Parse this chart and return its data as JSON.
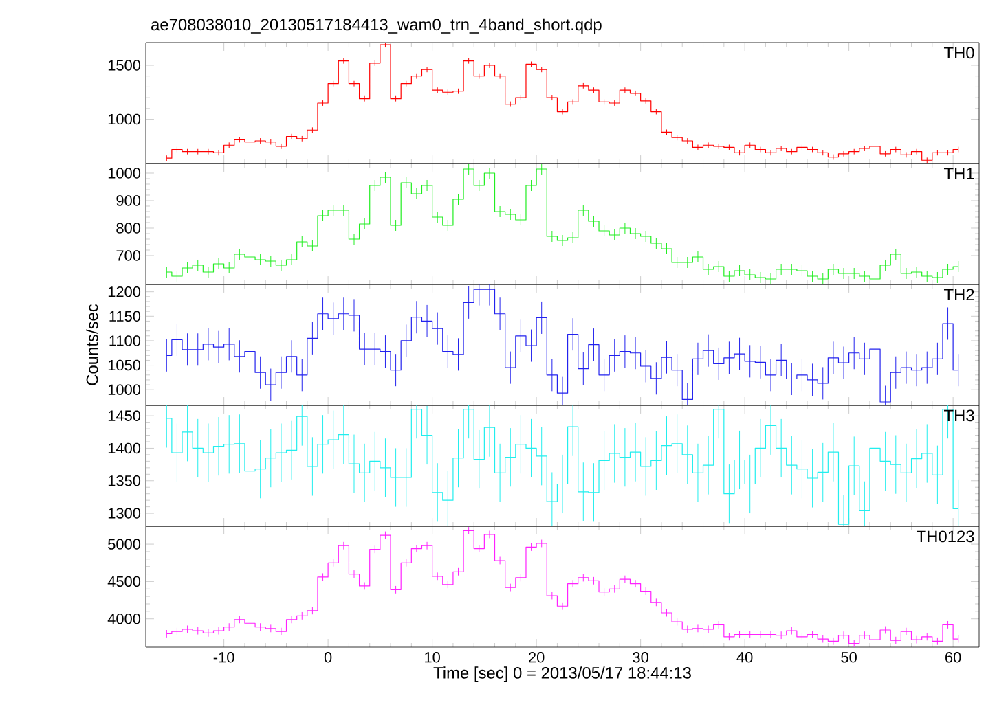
{
  "chart_data": [
    {
      "type": "step",
      "title": "ae708038010_20130517184413_wam0_trn_4band_short.qdp",
      "x": [
        -15.5,
        -14.5,
        -13.5,
        -12.5,
        -11.5,
        -10.5,
        -9.5,
        -8.5,
        -7.5,
        -6.5,
        -5.5,
        -4.5,
        -3.5,
        -2.5,
        -1.5,
        -0.5,
        0.5,
        1.5,
        2.5,
        3.5,
        4.5,
        5.5,
        6.5,
        7.5,
        8.5,
        9.5,
        10.5,
        11.5,
        12.5,
        13.5,
        14.5,
        15.5,
        16.5,
        17.5,
        18.5,
        19.5,
        20.5,
        21.5,
        22.5,
        23.5,
        24.5,
        25.5,
        26.5,
        27.5,
        28.5,
        29.5,
        30.5,
        31.5,
        32.5,
        33.5,
        34.5,
        35.5,
        36.5,
        37.5,
        38.5,
        39.5,
        40.5,
        41.5,
        42.5,
        43.5,
        44.5,
        45.5,
        46.5,
        47.5,
        48.5,
        49.5,
        50.5,
        51.5,
        52.5,
        53.5,
        54.5,
        55.5,
        56.5,
        57.5,
        58.5,
        59.5,
        60.5
      ],
      "series": [
        {
          "name": "TH0",
          "color": "#ff0000",
          "values": [
            640,
            720,
            700,
            700,
            700,
            690,
            760,
            810,
            790,
            800,
            790,
            750,
            840,
            820,
            900,
            1150,
            1330,
            1540,
            1330,
            1190,
            1520,
            1690,
            1190,
            1330,
            1400,
            1460,
            1270,
            1250,
            1260,
            1540,
            1400,
            1500,
            1400,
            1140,
            1200,
            1510,
            1460,
            1200,
            1070,
            1160,
            1310,
            1270,
            1160,
            1150,
            1270,
            1240,
            1170,
            1070,
            880,
            830,
            800,
            740,
            760,
            750,
            740,
            690,
            760,
            720,
            690,
            730,
            700,
            740,
            720,
            690,
            650,
            680,
            700,
            730,
            750,
            680,
            720,
            670,
            700,
            620,
            690,
            690,
            720
          ],
          "errors": [
            25,
            25,
            25,
            25,
            25,
            25,
            25,
            25,
            25,
            25,
            25,
            25,
            25,
            25,
            25,
            25,
            25,
            25,
            25,
            25,
            25,
            25,
            25,
            25,
            25,
            25,
            25,
            25,
            25,
            25,
            25,
            25,
            25,
            25,
            25,
            25,
            25,
            25,
            25,
            25,
            25,
            25,
            25,
            25,
            25,
            25,
            25,
            25,
            25,
            25,
            25,
            25,
            25,
            25,
            25,
            25,
            25,
            25,
            25,
            25,
            25,
            25,
            25,
            25,
            25,
            25,
            25,
            25,
            25,
            25,
            25,
            25,
            25,
            25,
            25,
            25,
            25
          ]
        }
      ],
      "xlim": [
        -17.5,
        62.5
      ],
      "ylim": [
        590,
        1710
      ],
      "xticks": [
        -10,
        0,
        10,
        20,
        30,
        40,
        50,
        60
      ],
      "yticks": [
        1000,
        1500
      ],
      "tick_labels": "y"
    },
    {
      "type": "step",
      "x": [
        -15.5,
        -14.5,
        -13.5,
        -12.5,
        -11.5,
        -10.5,
        -9.5,
        -8.5,
        -7.5,
        -6.5,
        -5.5,
        -4.5,
        -3.5,
        -2.5,
        -1.5,
        -0.5,
        0.5,
        1.5,
        2.5,
        3.5,
        4.5,
        5.5,
        6.5,
        7.5,
        8.5,
        9.5,
        10.5,
        11.5,
        12.5,
        13.5,
        14.5,
        15.5,
        16.5,
        17.5,
        18.5,
        19.5,
        20.5,
        21.5,
        22.5,
        23.5,
        24.5,
        25.5,
        26.5,
        27.5,
        28.5,
        29.5,
        30.5,
        31.5,
        32.5,
        33.5,
        34.5,
        35.5,
        36.5,
        37.5,
        38.5,
        39.5,
        40.5,
        41.5,
        42.5,
        43.5,
        44.5,
        45.5,
        46.5,
        47.5,
        48.5,
        49.5,
        50.5,
        51.5,
        52.5,
        53.5,
        54.5,
        55.5,
        56.5,
        57.5,
        58.5,
        59.5,
        60.5
      ],
      "series": [
        {
          "name": "TH1",
          "color": "#22ee22",
          "values": [
            640,
            625,
            655,
            665,
            640,
            670,
            655,
            705,
            695,
            685,
            680,
            665,
            685,
            750,
            735,
            845,
            865,
            865,
            760,
            815,
            955,
            985,
            810,
            965,
            925,
            955,
            840,
            810,
            905,
            1015,
            955,
            1000,
            860,
            850,
            830,
            955,
            1015,
            770,
            755,
            765,
            865,
            825,
            790,
            775,
            800,
            780,
            770,
            745,
            725,
            675,
            675,
            695,
            650,
            660,
            625,
            645,
            630,
            620,
            615,
            650,
            650,
            645,
            625,
            615,
            650,
            635,
            635,
            625,
            615,
            665,
            705,
            635,
            640,
            625,
            620,
            650,
            660
          ],
          "errors": [
            20,
            20,
            20,
            20,
            20,
            20,
            20,
            20,
            20,
            20,
            20,
            20,
            20,
            20,
            20,
            20,
            20,
            20,
            20,
            20,
            20,
            20,
            20,
            20,
            20,
            20,
            20,
            20,
            20,
            20,
            20,
            20,
            20,
            20,
            20,
            20,
            20,
            20,
            20,
            20,
            20,
            20,
            20,
            20,
            20,
            20,
            20,
            20,
            20,
            20,
            20,
            20,
            20,
            20,
            20,
            20,
            20,
            20,
            20,
            20,
            20,
            20,
            20,
            20,
            20,
            20,
            20,
            20,
            20,
            20,
            20,
            20,
            20,
            20,
            20,
            20,
            20
          ]
        }
      ],
      "xlim": [
        -17.5,
        62.5
      ],
      "ylim": [
        595,
        1035
      ],
      "xticks": [
        -10,
        0,
        10,
        20,
        30,
        40,
        50,
        60
      ],
      "yticks": [
        700,
        800,
        900,
        1000
      ],
      "tick_labels": "y"
    },
    {
      "type": "step",
      "ylabel": "Counts/sec",
      "x": [
        -15.5,
        -14.5,
        -13.5,
        -12.5,
        -11.5,
        -10.5,
        -9.5,
        -8.5,
        -7.5,
        -6.5,
        -5.5,
        -4.5,
        -3.5,
        -2.5,
        -1.5,
        -0.5,
        0.5,
        1.5,
        2.5,
        3.5,
        4.5,
        5.5,
        6.5,
        7.5,
        8.5,
        9.5,
        10.5,
        11.5,
        12.5,
        13.5,
        14.5,
        15.5,
        16.5,
        17.5,
        18.5,
        19.5,
        20.5,
        21.5,
        22.5,
        23.5,
        24.5,
        25.5,
        26.5,
        27.5,
        28.5,
        29.5,
        30.5,
        31.5,
        32.5,
        33.5,
        34.5,
        35.5,
        36.5,
        37.5,
        38.5,
        39.5,
        40.5,
        41.5,
        42.5,
        43.5,
        44.5,
        45.5,
        46.5,
        47.5,
        48.5,
        49.5,
        50.5,
        51.5,
        52.5,
        53.5,
        54.5,
        55.5,
        56.5,
        57.5,
        58.5,
        59.5,
        60.5
      ],
      "series": [
        {
          "name": "TH2",
          "color": "#2222ee",
          "values": [
            1070,
            1102,
            1082,
            1082,
            1093,
            1087,
            1093,
            1068,
            1078,
            1035,
            1010,
            1035,
            1068,
            1030,
            1105,
            1155,
            1145,
            1155,
            1152,
            1083,
            1083,
            1078,
            1040,
            1100,
            1148,
            1140,
            1125,
            1078,
            1072,
            1178,
            1205,
            1205,
            1155,
            1045,
            1110,
            1090,
            1147,
            1030,
            993,
            1113,
            1043,
            1092,
            1030,
            1070,
            1078,
            1075,
            1048,
            1023,
            1066,
            1040,
            980,
            1063,
            1080,
            1053,
            1065,
            1073,
            1058,
            1056,
            1030,
            1060,
            1022,
            1030,
            1020,
            1013,
            1065,
            1055,
            1075,
            1063,
            1083,
            975,
            1035,
            1045,
            1040,
            1045,
            1063,
            1135,
            1040
          ],
          "errors": [
            33,
            33,
            33,
            33,
            33,
            33,
            33,
            33,
            33,
            33,
            33,
            33,
            33,
            33,
            33,
            33,
            33,
            33,
            33,
            33,
            33,
            33,
            33,
            33,
            33,
            33,
            33,
            33,
            33,
            33,
            33,
            33,
            33,
            33,
            33,
            33,
            33,
            33,
            33,
            33,
            33,
            33,
            33,
            33,
            33,
            33,
            33,
            33,
            33,
            33,
            33,
            33,
            33,
            33,
            33,
            33,
            33,
            33,
            33,
            33,
            33,
            33,
            33,
            33,
            33,
            33,
            33,
            33,
            33,
            33,
            33,
            33,
            33,
            33,
            33,
            33,
            33
          ]
        }
      ],
      "xlim": [
        -17.5,
        62.5
      ],
      "ylim": [
        968,
        1215
      ],
      "xticks": [
        -10,
        0,
        10,
        20,
        30,
        40,
        50,
        60
      ],
      "yticks": [
        1000,
        1050,
        1100,
        1150,
        1200
      ],
      "tick_labels": "y"
    },
    {
      "type": "step",
      "x": [
        -15.5,
        -14.5,
        -13.5,
        -12.5,
        -11.5,
        -10.5,
        -9.5,
        -8.5,
        -7.5,
        -6.5,
        -5.5,
        -4.5,
        -3.5,
        -2.5,
        -1.5,
        -0.5,
        0.5,
        1.5,
        2.5,
        3.5,
        4.5,
        5.5,
        6.5,
        7.5,
        8.5,
        9.5,
        10.5,
        11.5,
        12.5,
        13.5,
        14.5,
        15.5,
        16.5,
        17.5,
        18.5,
        19.5,
        20.5,
        21.5,
        22.5,
        23.5,
        24.5,
        25.5,
        26.5,
        27.5,
        28.5,
        29.5,
        30.5,
        31.5,
        32.5,
        33.5,
        34.5,
        35.5,
        36.5,
        37.5,
        38.5,
        39.5,
        40.5,
        41.5,
        42.5,
        43.5,
        44.5,
        45.5,
        46.5,
        47.5,
        48.5,
        49.5,
        50.5,
        51.5,
        52.5,
        53.5,
        54.5,
        55.5,
        56.5,
        57.5,
        58.5,
        59.5,
        60.5
      ],
      "series": [
        {
          "name": "TH3",
          "color": "#22eeee",
          "values": [
            1446,
            1393,
            1425,
            1400,
            1393,
            1403,
            1406,
            1407,
            1365,
            1368,
            1385,
            1393,
            1397,
            1449,
            1372,
            1406,
            1413,
            1421,
            1376,
            1362,
            1380,
            1370,
            1355,
            1355,
            1460,
            1420,
            1332,
            1320,
            1385,
            1460,
            1383,
            1432,
            1362,
            1386,
            1406,
            1400,
            1388,
            1318,
            1345,
            1433,
            1333,
            1332,
            1381,
            1392,
            1386,
            1394,
            1372,
            1381,
            1404,
            1407,
            1390,
            1362,
            1374,
            1460,
            1330,
            1382,
            1345,
            1400,
            1435,
            1400,
            1374,
            1368,
            1354,
            1363,
            1394,
            1283,
            1373,
            1304,
            1400,
            1380,
            1375,
            1362,
            1384,
            1392,
            1359,
            1460,
            1307
          ],
          "errors": [
            45,
            45,
            45,
            45,
            45,
            45,
            45,
            45,
            45,
            45,
            45,
            45,
            45,
            45,
            45,
            45,
            45,
            45,
            45,
            45,
            45,
            45,
            45,
            45,
            45,
            45,
            45,
            45,
            45,
            45,
            45,
            45,
            45,
            45,
            45,
            45,
            45,
            45,
            45,
            45,
            45,
            45,
            45,
            45,
            45,
            45,
            45,
            45,
            45,
            45,
            45,
            45,
            45,
            45,
            45,
            45,
            45,
            45,
            45,
            45,
            45,
            45,
            45,
            45,
            45,
            45,
            45,
            45,
            45,
            45,
            45,
            45,
            45,
            45,
            45,
            45,
            45
          ]
        }
      ],
      "xlim": [
        -17.5,
        62.5
      ],
      "ylim": [
        1280,
        1466
      ],
      "xticks": [
        -10,
        0,
        10,
        20,
        30,
        40,
        50,
        60
      ],
      "yticks": [
        1300,
        1350,
        1400,
        1450
      ],
      "tick_labels": "y"
    },
    {
      "type": "step",
      "xlabel": "Time [sec] 0 = 2013/05/17 18:44:13",
      "x": [
        -15.5,
        -14.5,
        -13.5,
        -12.5,
        -11.5,
        -10.5,
        -9.5,
        -8.5,
        -7.5,
        -6.5,
        -5.5,
        -4.5,
        -3.5,
        -2.5,
        -1.5,
        -0.5,
        0.5,
        1.5,
        2.5,
        3.5,
        4.5,
        5.5,
        6.5,
        7.5,
        8.5,
        9.5,
        10.5,
        11.5,
        12.5,
        13.5,
        14.5,
        15.5,
        16.5,
        17.5,
        18.5,
        19.5,
        20.5,
        21.5,
        22.5,
        23.5,
        24.5,
        25.5,
        26.5,
        27.5,
        28.5,
        29.5,
        30.5,
        31.5,
        32.5,
        33.5,
        34.5,
        35.5,
        36.5,
        37.5,
        38.5,
        39.5,
        40.5,
        41.5,
        42.5,
        43.5,
        44.5,
        45.5,
        46.5,
        47.5,
        48.5,
        49.5,
        50.5,
        51.5,
        52.5,
        53.5,
        54.5,
        55.5,
        56.5,
        57.5,
        58.5,
        59.5,
        60.5
      ],
      "series": [
        {
          "name": "TH0123",
          "color": "#ff22ff",
          "values": [
            3800,
            3830,
            3860,
            3840,
            3810,
            3840,
            3890,
            3990,
            3940,
            3890,
            3870,
            3830,
            3990,
            4040,
            4110,
            4560,
            4750,
            4980,
            4600,
            4440,
            4930,
            5120,
            4390,
            4750,
            4940,
            4980,
            4570,
            4460,
            4630,
            5180,
            4940,
            5130,
            4780,
            4420,
            4550,
            4960,
            5010,
            4310,
            4170,
            4470,
            4550,
            4510,
            4360,
            4400,
            4530,
            4470,
            4370,
            4220,
            4080,
            3960,
            3860,
            3870,
            3860,
            3920,
            3760,
            3790,
            3790,
            3790,
            3790,
            3780,
            3840,
            3760,
            3790,
            3730,
            3700,
            3780,
            3670,
            3780,
            3720,
            3850,
            3710,
            3830,
            3720,
            3760,
            3700,
            3920,
            3730
          ],
          "errors": [
            50,
            50,
            50,
            50,
            50,
            50,
            50,
            50,
            50,
            50,
            50,
            50,
            50,
            50,
            50,
            50,
            50,
            50,
            50,
            50,
            50,
            50,
            50,
            50,
            50,
            50,
            50,
            50,
            50,
            50,
            50,
            50,
            50,
            50,
            50,
            50,
            50,
            50,
            50,
            50,
            50,
            50,
            50,
            50,
            50,
            50,
            50,
            50,
            50,
            50,
            50,
            50,
            50,
            50,
            50,
            50,
            50,
            50,
            50,
            50,
            50,
            50,
            50,
            50,
            50,
            50,
            50,
            50,
            50,
            50,
            50,
            50,
            50,
            50,
            50,
            50,
            50
          ]
        }
      ],
      "xlim": [
        -17.5,
        62.5
      ],
      "ylim": [
        3620,
        5240
      ],
      "xticks": [
        -10,
        0,
        10,
        20,
        30,
        40,
        50,
        60
      ],
      "yticks": [
        4000,
        4500,
        5000
      ]
    }
  ]
}
